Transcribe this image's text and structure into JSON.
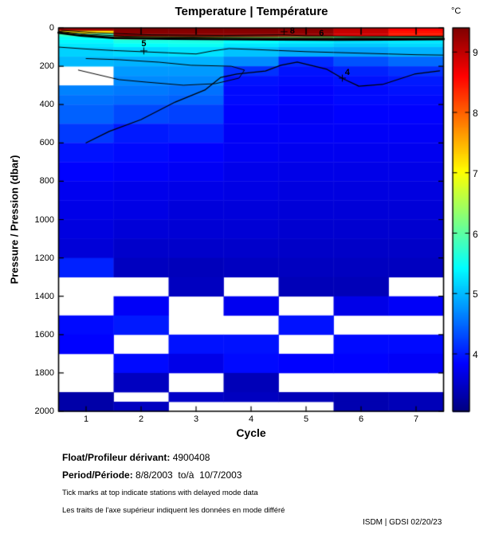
{
  "title": "Temperature | Température",
  "footer": {
    "float_label": "Float/Profileur dérivant:",
    "float_value": " 4900408",
    "period_label": "Period/Période:",
    "period_value": " 8/8/2003  to/à  10/7/2003",
    "note_en": "Tick marks at top indicate stations with delayed mode data",
    "note_fr": "Les traits de l'axe supérieur indiquent les données en mode différé",
    "credit": "ISDM | GDSI 02/20/23"
  },
  "chart_data": {
    "type": "heatmap",
    "title": "Temperature | Température",
    "xlabel": "Cycle",
    "ylabel": "Pressure / Pression (dbar)",
    "x_ticks": [
      1,
      2,
      3,
      4,
      5,
      6,
      7
    ],
    "y_ticks": [
      0,
      200,
      400,
      600,
      800,
      1000,
      1200,
      1400,
      1600,
      1800,
      2000
    ],
    "x_range": [
      0.5,
      7.5
    ],
    "y_range": [
      0,
      2000
    ],
    "grid": false,
    "missing_color": "#ffffff",
    "colorbar": {
      "label": "°C",
      "ticks": [
        4,
        5,
        6,
        7,
        8,
        9
      ],
      "vmin": 3.05,
      "vmax": 9.4,
      "colormap": "jet"
    },
    "top_delayed_mode_tick_cycles": [
      2,
      3,
      5,
      6,
      7
    ],
    "cycles": [
      1,
      2,
      3,
      4,
      5,
      6,
      7
    ],
    "pressure_edges": [
      0,
      15,
      30,
      45,
      60,
      80,
      100,
      150,
      200,
      250,
      300,
      350,
      400,
      500,
      600,
      700,
      800,
      900,
      1000,
      1100,
      1200,
      1300,
      1400,
      1500,
      1600,
      1700,
      1800,
      1900,
      1950,
      2000
    ],
    "values": [
      [
        9.2,
        9.4,
        9.4,
        9.4,
        9.35,
        9.0,
        8.6
      ],
      [
        7.2,
        9.35,
        9.35,
        9.35,
        9.3,
        8.95,
        8.5
      ],
      [
        5.8,
        9.3,
        9.3,
        9.3,
        9.25,
        8.9,
        8.45
      ],
      [
        5.5,
        6.6,
        6.6,
        6.4,
        6.3,
        6.1,
        6.0
      ],
      [
        5.4,
        5.6,
        5.6,
        5.45,
        5.35,
        5.25,
        5.3
      ],
      [
        5.3,
        5.45,
        5.5,
        5.3,
        5.2,
        5.1,
        5.2
      ],
      [
        5.15,
        5.2,
        5.25,
        5.05,
        4.9,
        4.85,
        4.95
      ],
      [
        5.0,
        4.95,
        4.95,
        4.7,
        4.1,
        4.35,
        4.5
      ],
      [
        null,
        4.8,
        4.8,
        4.15,
        3.95,
        4.05,
        4.15
      ],
      [
        null,
        4.7,
        4.7,
        3.95,
        3.9,
        3.95,
        4.0
      ],
      [
        4.65,
        4.6,
        4.55,
        3.9,
        3.85,
        3.9,
        3.95
      ],
      [
        4.55,
        4.5,
        4.45,
        3.9,
        3.85,
        3.9,
        3.9
      ],
      [
        4.45,
        4.3,
        4.25,
        3.85,
        3.8,
        3.85,
        3.85
      ],
      [
        4.2,
        4.0,
        4.05,
        3.8,
        3.8,
        3.8,
        3.8
      ],
      [
        3.95,
        3.9,
        3.85,
        3.78,
        3.75,
        3.75,
        3.75
      ],
      [
        3.85,
        3.82,
        3.78,
        3.72,
        3.7,
        3.7,
        3.7
      ],
      [
        3.75,
        3.72,
        3.7,
        3.68,
        3.65,
        3.65,
        3.65
      ],
      [
        3.7,
        3.68,
        3.62,
        3.62,
        3.6,
        3.6,
        3.6
      ],
      [
        3.65,
        3.6,
        3.58,
        3.58,
        3.55,
        3.55,
        3.55
      ],
      [
        3.6,
        3.52,
        3.52,
        3.52,
        3.5,
        3.5,
        3.5
      ],
      [
        4.05,
        3.45,
        3.42,
        3.45,
        3.45,
        3.45,
        3.45
      ],
      [
        null,
        null,
        3.45,
        null,
        3.4,
        3.4,
        null
      ],
      [
        null,
        3.8,
        null,
        3.75,
        null,
        3.7,
        3.8
      ],
      [
        3.9,
        4.0,
        null,
        null,
        3.95,
        null,
        null
      ],
      [
        3.85,
        null,
        3.95,
        3.95,
        null,
        3.9,
        3.9
      ],
      [
        null,
        3.9,
        3.7,
        3.9,
        3.85,
        3.85,
        3.8
      ],
      [
        null,
        3.45,
        null,
        3.4,
        null,
        null,
        null
      ],
      [
        3.3,
        null,
        3.5,
        3.45,
        3.4,
        3.35,
        3.4
      ],
      [
        3.3,
        3.45,
        null,
        null,
        null,
        3.35,
        3.4
      ]
    ],
    "contours": [
      {
        "level": 4,
        "label": "4",
        "label_at": {
          "cycle": 5.75,
          "pressure": 232
        },
        "marker_at": {
          "cycle": 5.66,
          "pressure": 262
        },
        "width": 1.2,
        "points": [
          [
            1.0,
            600
          ],
          [
            1.42,
            540
          ],
          [
            2.0,
            478
          ],
          [
            2.62,
            387
          ],
          [
            3.16,
            324
          ],
          [
            3.45,
            258
          ],
          [
            3.74,
            241
          ],
          [
            4.26,
            225
          ],
          [
            4.54,
            195
          ],
          [
            4.84,
            178
          ],
          [
            5.38,
            216
          ],
          [
            5.68,
            266
          ],
          [
            5.96,
            304
          ],
          [
            6.39,
            295
          ],
          [
            6.97,
            241
          ],
          [
            7.43,
            224
          ]
        ]
      },
      {
        "level": 5,
        "label": "5",
        "label_at": {
          "cycle": 2.05,
          "pressure": 84
        },
        "marker_at": {
          "cycle": 2.05,
          "pressure": 120
        },
        "width": 1,
        "points": [
          [
            0.5,
            100
          ],
          [
            1.0,
            110
          ],
          [
            1.5,
            118
          ],
          [
            2.0,
            124
          ],
          [
            2.5,
            130
          ],
          [
            3.0,
            136
          ],
          [
            3.3,
            120
          ],
          [
            3.6,
            108
          ],
          [
            4.0,
            112
          ],
          [
            4.5,
            118
          ],
          [
            5.0,
            124
          ],
          [
            5.5,
            128
          ],
          [
            6.0,
            132
          ],
          [
            6.5,
            136
          ],
          [
            7.0,
            140
          ],
          [
            7.5,
            142
          ]
        ]
      },
      {
        "level": 5,
        "width": 1,
        "points": [
          [
            1.0,
            160
          ],
          [
            1.6,
            166
          ],
          [
            2.33,
            179
          ],
          [
            2.91,
            195
          ],
          [
            3.64,
            200
          ],
          [
            3.88,
            220
          ],
          [
            3.78,
            262
          ],
          [
            3.35,
            291
          ],
          [
            2.77,
            299
          ],
          [
            2.1,
            283
          ],
          [
            1.6,
            270
          ],
          [
            0.86,
            220
          ]
        ]
      },
      {
        "level": 6,
        "label": "6",
        "label_at": {
          "cycle": 5.28,
          "pressure": 30
        },
        "width": 3,
        "points": [
          [
            0.5,
            25
          ],
          [
            0.9,
            40
          ],
          [
            1.5,
            52
          ],
          [
            2.5,
            56
          ],
          [
            3.5,
            58
          ],
          [
            4.5,
            60
          ],
          [
            5.5,
            61
          ],
          [
            6.5,
            60
          ],
          [
            7.5,
            58
          ]
        ]
      },
      {
        "level": 7,
        "width": 1,
        "points": [
          [
            0.5,
            18
          ],
          [
            1.0,
            32
          ],
          [
            1.7,
            44
          ],
          [
            3.0,
            48
          ],
          [
            4.5,
            50
          ],
          [
            5.5,
            52
          ],
          [
            7.5,
            49
          ]
        ]
      },
      {
        "level": 8,
        "label": "8",
        "label_at": {
          "cycle": 4.75,
          "pressure": 16
        },
        "marker_at": {
          "cycle": 4.6,
          "pressure": 20
        },
        "width": 1,
        "points": [
          [
            0.55,
            12
          ],
          [
            1.2,
            26
          ],
          [
            2.2,
            36
          ],
          [
            3.5,
            40
          ],
          [
            4.6,
            36
          ],
          [
            5.0,
            42
          ],
          [
            6.0,
            45
          ],
          [
            7.5,
            43
          ]
        ]
      }
    ]
  }
}
